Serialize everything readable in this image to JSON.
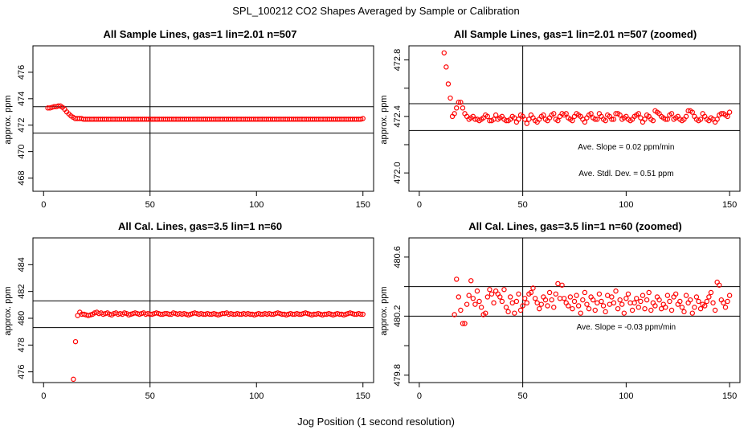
{
  "figure": {
    "title": "SPL_100212  CO2 Shapes Averaged by Sample or Calibration",
    "xlabel": "Jog Position (1 second resolution)"
  },
  "chart_data": [
    {
      "type": "scatter",
      "title": "All Sample Lines, gas=1 lin=2.01 n=507",
      "ylabel": "approx. ppm",
      "xlim": [
        -5,
        155
      ],
      "ylim": [
        467,
        478
      ],
      "x_ticks": [
        0,
        50,
        100,
        150
      ],
      "y_ticks": [
        468,
        470,
        472,
        474,
        476
      ],
      "vline": 50,
      "hlines": [
        473.4,
        471.4
      ],
      "marker_color": "#ff0000",
      "x_start": 2,
      "x_end": 150,
      "y_values": [
        473.3,
        473.3,
        473.35,
        473.4,
        473.4,
        473.45,
        473.45,
        473.35,
        473.2,
        473.0,
        472.85,
        472.7,
        472.6,
        472.5,
        472.5,
        472.5,
        472.5,
        472.45,
        472.45,
        472.45,
        472.45,
        472.45,
        472.45,
        472.45,
        472.45,
        472.45,
        472.45,
        472.45,
        472.45,
        472.45,
        472.45,
        472.45,
        472.45,
        472.45,
        472.45,
        472.45,
        472.45,
        472.45,
        472.45,
        472.45,
        472.45,
        472.45,
        472.45,
        472.45,
        472.45,
        472.45,
        472.45,
        472.45,
        472.45,
        472.45,
        472.45,
        472.45,
        472.45,
        472.45,
        472.45,
        472.45,
        472.45,
        472.45,
        472.45,
        472.45,
        472.45,
        472.45,
        472.45,
        472.45,
        472.45,
        472.45,
        472.45,
        472.45,
        472.45,
        472.45,
        472.45,
        472.45,
        472.45,
        472.45,
        472.45,
        472.45,
        472.45,
        472.45,
        472.45,
        472.45,
        472.45,
        472.45,
        472.45,
        472.45,
        472.45,
        472.45,
        472.45,
        472.45,
        472.45,
        472.45,
        472.45,
        472.45,
        472.45,
        472.45,
        472.45,
        472.45,
        472.45,
        472.45,
        472.45,
        472.45,
        472.45,
        472.45,
        472.45,
        472.45,
        472.45,
        472.45,
        472.45,
        472.45,
        472.45,
        472.45,
        472.45,
        472.45,
        472.45,
        472.45,
        472.45,
        472.45,
        472.45,
        472.45,
        472.45,
        472.45,
        472.45,
        472.45,
        472.45,
        472.45,
        472.45,
        472.45,
        472.45,
        472.45,
        472.45,
        472.45,
        472.45,
        472.45,
        472.45,
        472.45,
        472.45,
        472.45,
        472.45,
        472.45,
        472.45,
        472.45,
        472.45,
        472.45,
        472.45,
        472.45,
        472.45,
        472.45,
        472.45,
        472.45,
        472.45,
        472.45,
        472.5
      ],
      "annotations": []
    },
    {
      "type": "scatter",
      "title": "All Sample Lines, gas=1 lin=2.01 n=507 (zoomed)",
      "ylabel": "approx. ppm",
      "xlim": [
        -5,
        155
      ],
      "ylim": [
        471.87,
        472.9
      ],
      "x_ticks": [
        0,
        50,
        100,
        150
      ],
      "y_ticks": [
        472.0,
        472.2,
        472.4,
        472.6,
        472.8
      ],
      "y_tick_labels": [
        "472.0",
        "",
        "472.4",
        "",
        "472.8"
      ],
      "vline": 50,
      "hlines": [
        472.49,
        472.3
      ],
      "marker_color": "#ff0000",
      "x_start": 12,
      "x_end": 150,
      "y_values": [
        472.85,
        472.75,
        472.63,
        472.53,
        472.4,
        472.42,
        472.46,
        472.5,
        472.5,
        472.46,
        472.42,
        472.4,
        472.38,
        472.39,
        472.4,
        472.38,
        472.38,
        472.37,
        472.38,
        472.39,
        472.41,
        472.4,
        472.37,
        472.37,
        472.38,
        472.41,
        472.38,
        472.39,
        472.4,
        472.38,
        472.37,
        472.37,
        472.38,
        472.4,
        472.39,
        472.36,
        472.38,
        472.41,
        472.4,
        472.38,
        472.35,
        472.38,
        472.41,
        472.39,
        472.37,
        472.36,
        472.38,
        472.4,
        472.41,
        472.38,
        472.37,
        472.39,
        472.41,
        472.42,
        472.38,
        472.37,
        472.4,
        472.42,
        472.41,
        472.42,
        472.39,
        472.38,
        472.37,
        472.4,
        472.42,
        472.41,
        472.4,
        472.38,
        472.36,
        472.39,
        472.41,
        472.42,
        472.39,
        472.38,
        472.38,
        472.42,
        472.4,
        472.38,
        472.37,
        472.41,
        472.4,
        472.38,
        472.38,
        472.42,
        472.42,
        472.41,
        472.38,
        472.39,
        472.4,
        472.38,
        472.37,
        472.38,
        472.4,
        472.41,
        472.42,
        472.39,
        472.36,
        472.38,
        472.41,
        472.4,
        472.38,
        472.37,
        472.44,
        472.43,
        472.42,
        472.4,
        472.39,
        472.38,
        472.38,
        472.41,
        472.42,
        472.38,
        472.39,
        472.4,
        472.38,
        472.37,
        472.38,
        472.4,
        472.44,
        472.44,
        472.43,
        472.4,
        472.38,
        472.37,
        472.38,
        472.42,
        472.4,
        472.38,
        472.37,
        472.39,
        472.38,
        472.36,
        472.38,
        472.41,
        472.42,
        472.42,
        472.41,
        472.4,
        472.43
      ],
      "annotations": [
        {
          "text": "Ave. Slope =  0.02  ppm/min",
          "x": 100,
          "y": 472.19
        },
        {
          "text": "Ave. Stdl. Dev. =  0.51  ppm",
          "x": 100,
          "y": 472.0
        }
      ]
    },
    {
      "type": "scatter",
      "title": "All Cal. Lines, gas=3.5 lin=1 n=60",
      "ylabel": "approx. ppm",
      "xlim": [
        -5,
        155
      ],
      "ylim": [
        475.2,
        486.0
      ],
      "x_ticks": [
        0,
        50,
        100,
        150
      ],
      "y_ticks": [
        476,
        478,
        480,
        482,
        484
      ],
      "vline": 50,
      "hlines": [
        481.3,
        479.3
      ],
      "marker_color": "#ff0000",
      "x_start": 14,
      "x_end": 150,
      "y_values": [
        475.45,
        478.25,
        480.2,
        480.45,
        480.3,
        480.3,
        480.25,
        480.2,
        480.25,
        480.3,
        480.4,
        480.45,
        480.35,
        480.4,
        480.3,
        480.35,
        480.4,
        480.3,
        480.25,
        480.35,
        480.4,
        480.3,
        480.35,
        480.3,
        480.4,
        480.35,
        480.25,
        480.3,
        480.35,
        480.4,
        480.35,
        480.3,
        480.35,
        480.4,
        480.3,
        480.35,
        480.3,
        480.3,
        480.35,
        480.4,
        480.35,
        480.3,
        480.3,
        480.35,
        480.35,
        480.3,
        480.3,
        480.4,
        480.35,
        480.3,
        480.35,
        480.3,
        480.35,
        480.3,
        480.25,
        480.3,
        480.35,
        480.4,
        480.35,
        480.3,
        480.35,
        480.3,
        480.3,
        480.35,
        480.3,
        480.3,
        480.35,
        480.3,
        480.25,
        480.3,
        480.35,
        480.35,
        480.4,
        480.3,
        480.35,
        480.3,
        480.3,
        480.35,
        480.3,
        480.3,
        480.35,
        480.3,
        480.35,
        480.3,
        480.3,
        480.25,
        480.3,
        480.35,
        480.3,
        480.3,
        480.35,
        480.3,
        480.35,
        480.3,
        480.3,
        480.35,
        480.4,
        480.35,
        480.3,
        480.3,
        480.25,
        480.3,
        480.35,
        480.3,
        480.3,
        480.35,
        480.3,
        480.3,
        480.35,
        480.4,
        480.35,
        480.3,
        480.25,
        480.3,
        480.3,
        480.35,
        480.3,
        480.25,
        480.3,
        480.3,
        480.35,
        480.3,
        480.25,
        480.3,
        480.35,
        480.3,
        480.3,
        480.25,
        480.3,
        480.35,
        480.4,
        480.35,
        480.3,
        480.3,
        480.35,
        480.3,
        480.3
      ],
      "annotations": []
    },
    {
      "type": "scatter",
      "title": "All Cal. Lines, gas=3.5 lin=1 n=60 (zoomed)",
      "ylabel": "approx. ppm",
      "xlim": [
        -5,
        155
      ],
      "ylim": [
        479.75,
        480.73
      ],
      "x_ticks": [
        0,
        50,
        100,
        150
      ],
      "y_ticks": [
        479.8,
        480.0,
        480.2,
        480.4,
        480.6
      ],
      "y_tick_labels": [
        "479.8",
        "",
        "480.2",
        "",
        "480.6"
      ],
      "vline": 50,
      "hlines": [
        480.4,
        480.2
      ],
      "marker_color": "#ff0000",
      "x_start": 17,
      "x_end": 150,
      "y_values": [
        480.21,
        480.45,
        480.33,
        480.24,
        480.15,
        480.15,
        480.28,
        480.34,
        480.44,
        480.32,
        480.28,
        480.37,
        480.3,
        480.26,
        480.21,
        480.22,
        480.33,
        480.38,
        480.35,
        480.29,
        480.37,
        480.35,
        480.33,
        480.3,
        480.38,
        480.26,
        480.23,
        480.33,
        480.29,
        480.22,
        480.3,
        480.35,
        480.24,
        480.27,
        480.32,
        480.29,
        480.35,
        480.36,
        480.39,
        480.32,
        480.29,
        480.25,
        480.28,
        480.33,
        480.31,
        480.27,
        480.36,
        480.31,
        480.26,
        480.35,
        480.42,
        480.32,
        480.41,
        480.32,
        480.29,
        480.27,
        480.33,
        480.25,
        480.3,
        480.34,
        480.27,
        480.22,
        480.31,
        480.36,
        480.28,
        480.25,
        480.33,
        480.31,
        480.24,
        480.29,
        480.35,
        480.3,
        480.27,
        480.23,
        480.34,
        480.28,
        480.33,
        480.29,
        480.37,
        480.25,
        480.31,
        480.28,
        480.22,
        480.32,
        480.35,
        480.29,
        480.24,
        480.29,
        480.32,
        480.26,
        480.3,
        480.34,
        480.25,
        480.31,
        480.36,
        480.24,
        480.29,
        480.27,
        480.33,
        480.31,
        480.25,
        480.28,
        480.26,
        480.34,
        480.3,
        480.24,
        480.33,
        480.35,
        480.28,
        480.3,
        480.26,
        480.23,
        480.34,
        480.29,
        480.31,
        480.22,
        480.26,
        480.33,
        480.3,
        480.25,
        480.28,
        480.27,
        480.3,
        480.33,
        480.36,
        480.29,
        480.24,
        480.43,
        480.41,
        480.31,
        480.29,
        480.26,
        480.3,
        480.34
      ],
      "annotations": [
        {
          "text": "Ave. Slope =  -0.03  ppm/min",
          "x": 100,
          "y": 480.13
        }
      ]
    }
  ]
}
